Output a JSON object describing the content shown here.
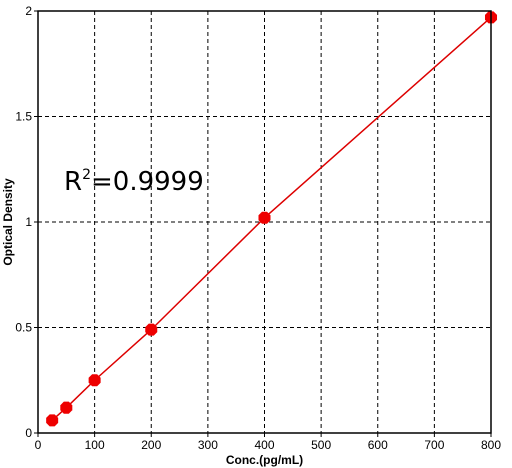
{
  "chart_data": {
    "type": "scatter",
    "title": "",
    "xlabel": "Conc.(pg/mL)",
    "ylabel": "Optical Density",
    "xlim": [
      0,
      800
    ],
    "ylim": [
      0,
      2
    ],
    "xticks": [
      "0",
      "100",
      "200",
      "300",
      "400",
      "500",
      "600",
      "700",
      "800"
    ],
    "yticks": [
      "0",
      "0.5",
      "1",
      "1.5",
      "2"
    ],
    "grid": true,
    "series": [
      {
        "x": [
          25,
          50,
          100,
          200,
          400,
          800
        ],
        "y": [
          0.06,
          0.12,
          0.25,
          0.49,
          1.02,
          1.97
        ],
        "color": "#ee0000",
        "line": true
      }
    ],
    "annotation": {
      "base": "R",
      "superscript": "2",
      "value": "=0.9999"
    }
  }
}
